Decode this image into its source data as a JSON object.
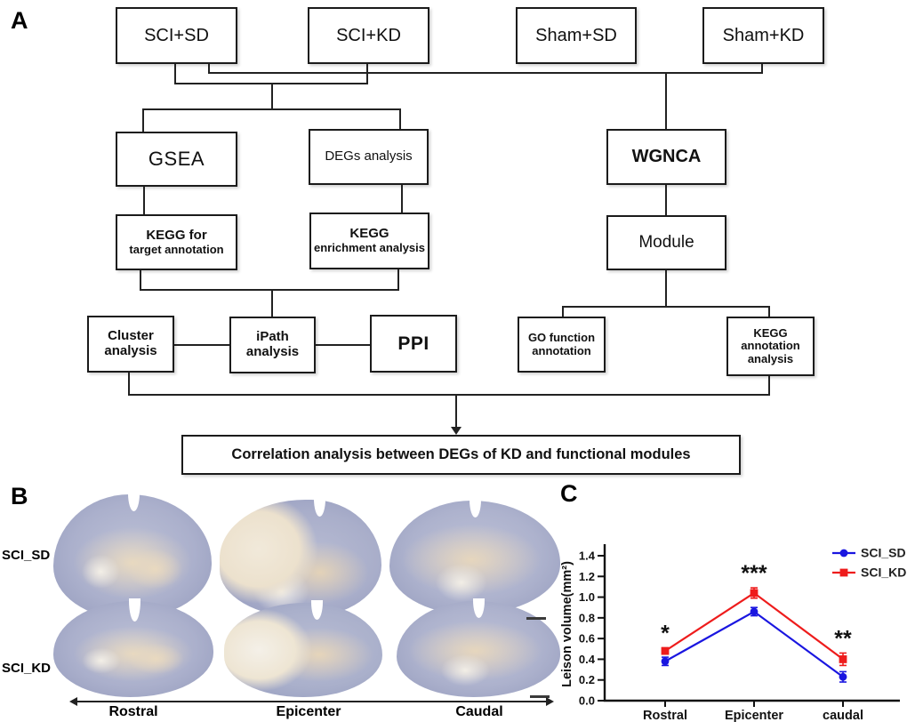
{
  "panelA": {
    "label": "A",
    "boxes": {
      "sci_sd": "SCI+SD",
      "sci_kd": "SCI+KD",
      "sham_sd": "Sham+SD",
      "sham_kd": "Sham+KD",
      "gsea": "GSEA",
      "degs": "DEGs analysis",
      "wgnca": "WGNCA",
      "kegg_target_line1": "KEGG for",
      "kegg_target_line2": "target annotation",
      "kegg_enrich_line1": "KEGG",
      "kegg_enrich_line2": "enrichment analysis",
      "module": "Module",
      "cluster_line1": "Cluster",
      "cluster_line2": "analysis",
      "ipath_line1": "iPath",
      "ipath_line2": "analysis",
      "ppi": "PPI",
      "go_line1": "GO function",
      "go_line2": "annotation",
      "kegg_ann_line1": "KEGG",
      "kegg_ann_line2": "annotation",
      "kegg_ann_line3": "analysis",
      "correlation": "Correlation analysis between DEGs of KD and functional modules"
    }
  },
  "panelB": {
    "label": "B",
    "row_labels": [
      "SCI_SD",
      "SCI_KD"
    ],
    "column_labels": [
      "Rostral",
      "Epicenter",
      "Caudal"
    ]
  },
  "panelC": {
    "label": "C"
  },
  "chart_data": {
    "type": "line",
    "title": "",
    "categories": [
      "Rostral",
      "Epicenter",
      "caudal"
    ],
    "xlabel": "",
    "ylabel": "Leison volume(mm²)",
    "ylim": [
      0,
      1.4
    ],
    "yticks": [
      "0.0",
      "0.2",
      "0.4",
      "0.6",
      "0.8",
      "1.0",
      "1.2",
      "1.4"
    ],
    "grid": false,
    "legend_position": "top-right",
    "series": [
      {
        "name": "SCI_SD",
        "color": "#1a16e0",
        "marker": "circle",
        "values": [
          0.38,
          0.86,
          0.23
        ],
        "errors": [
          0.04,
          0.04,
          0.05
        ]
      },
      {
        "name": "SCI_KD",
        "color": "#ee1c1c",
        "marker": "square",
        "values": [
          0.48,
          1.04,
          0.4
        ],
        "errors": [
          0.03,
          0.05,
          0.06
        ]
      }
    ],
    "significance": [
      "*",
      "***",
      "**"
    ]
  }
}
